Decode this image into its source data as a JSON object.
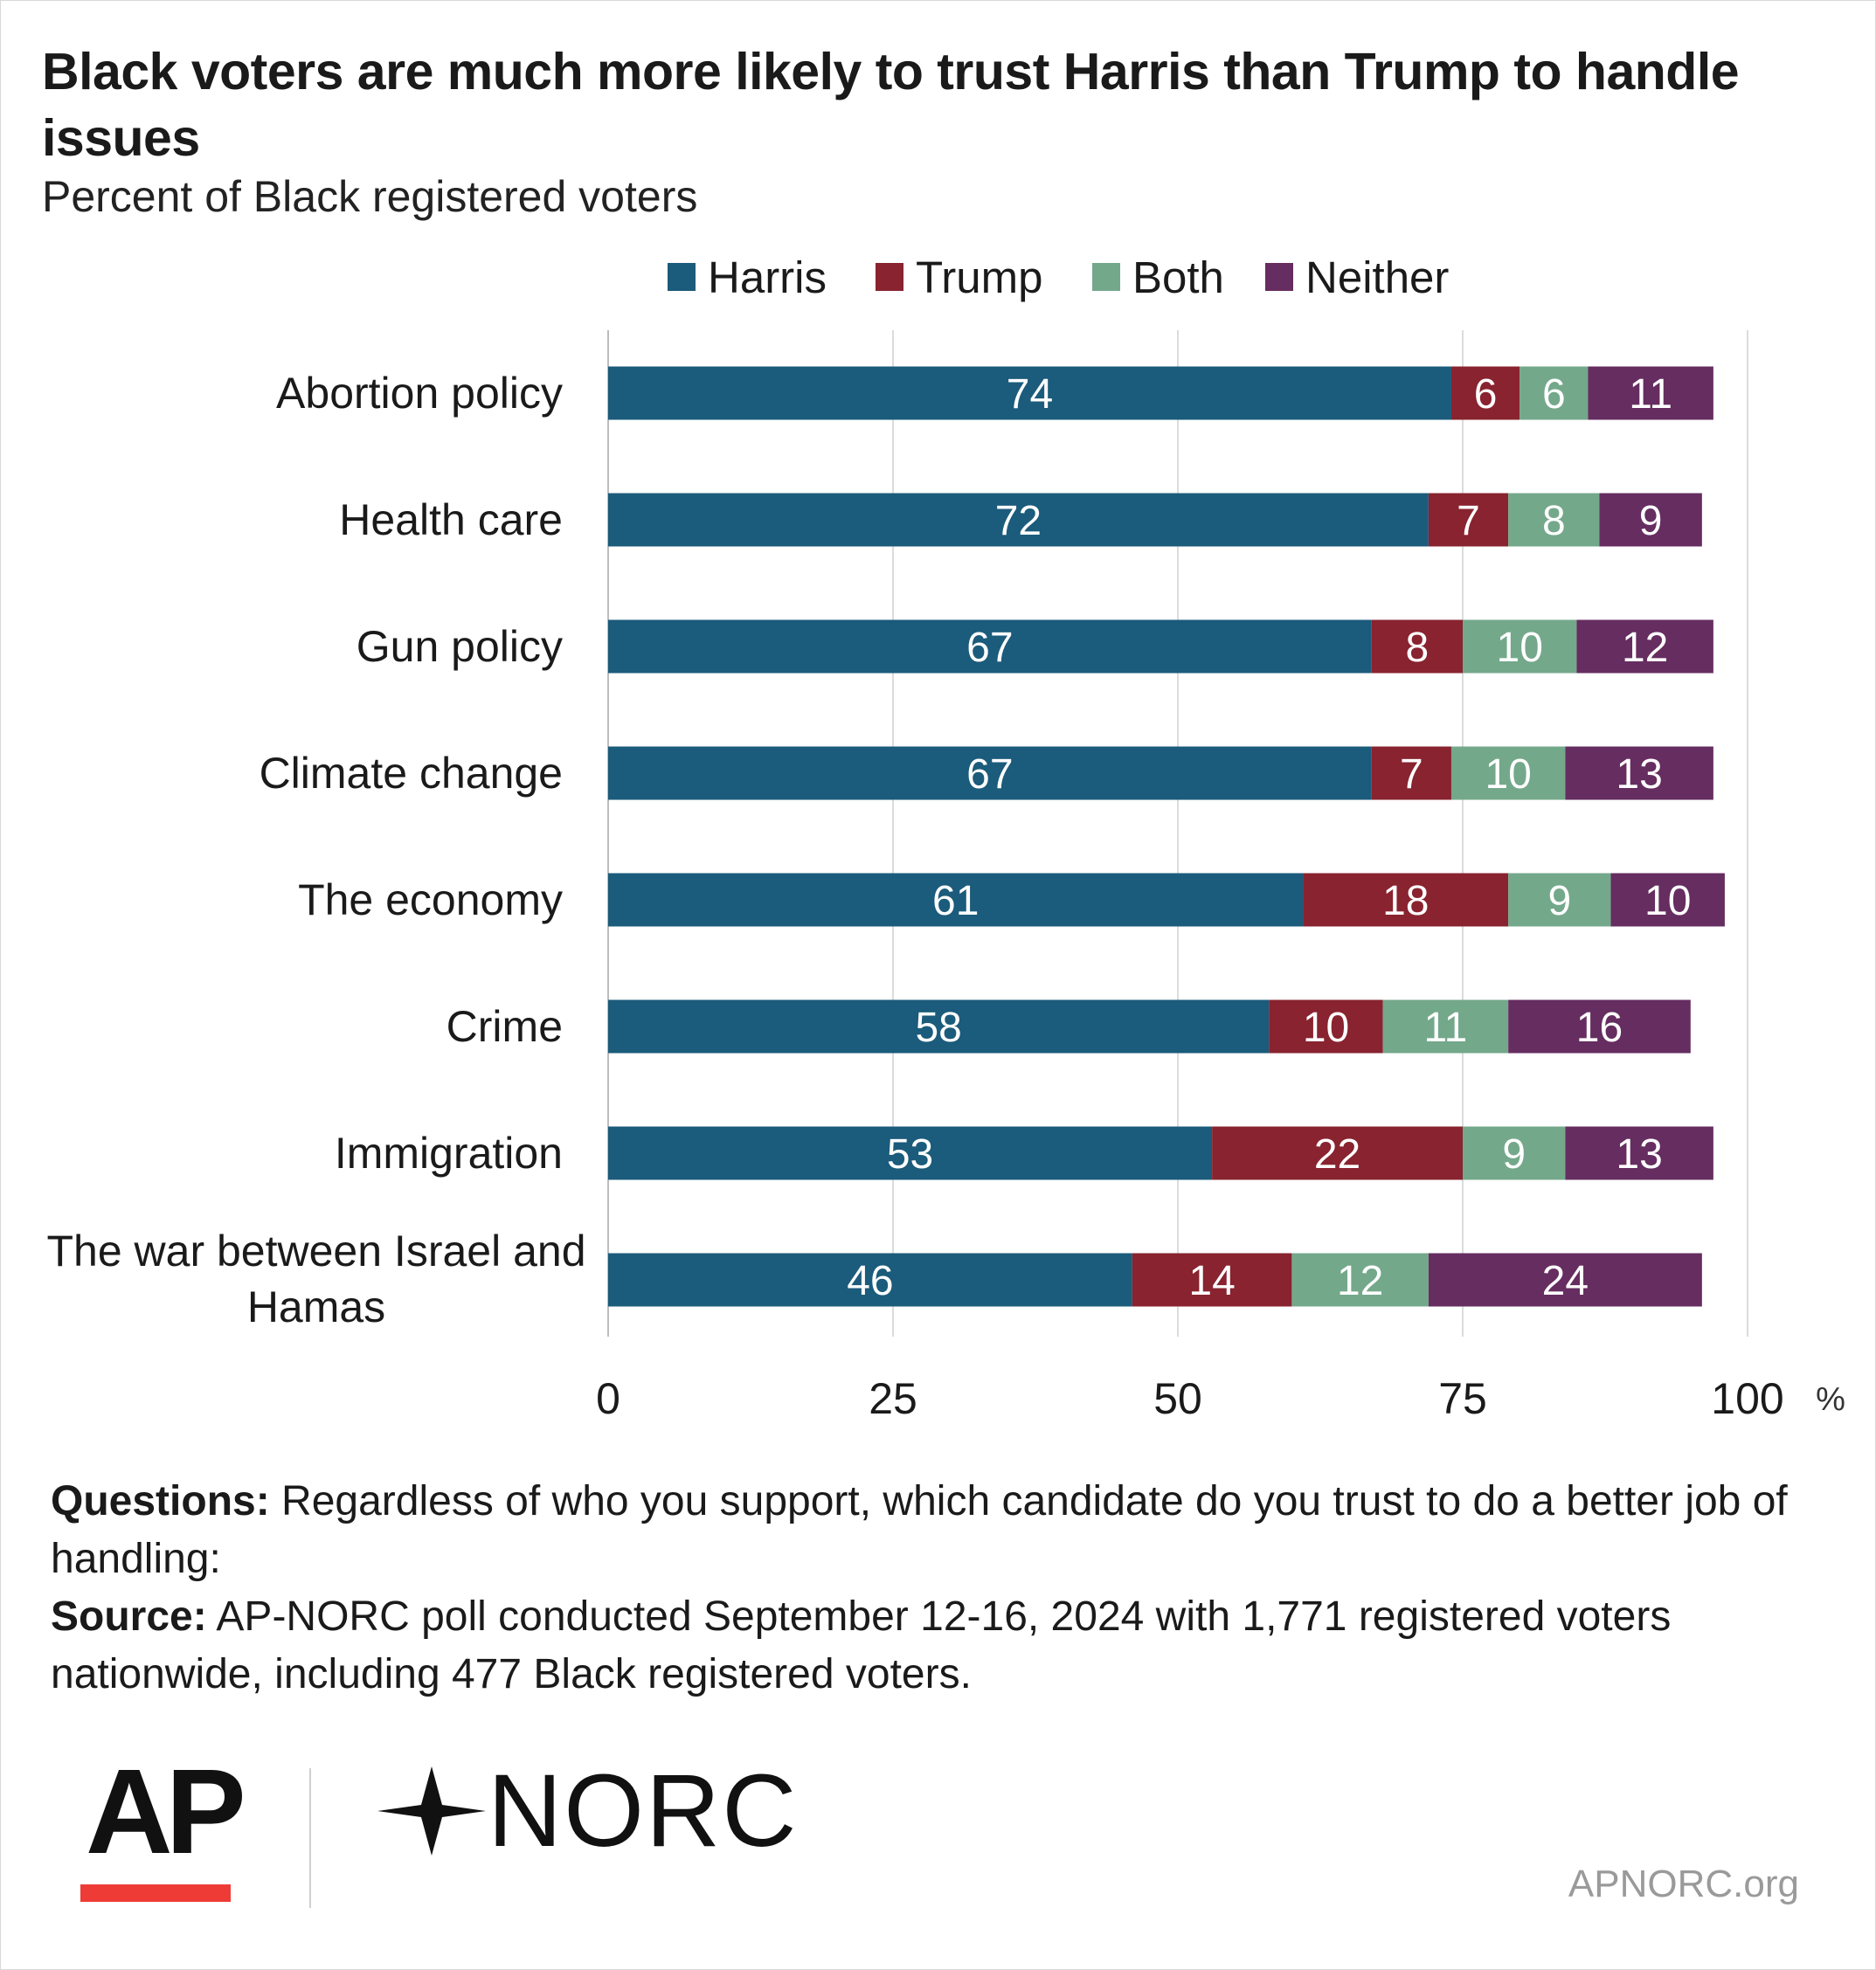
{
  "title": "Black voters are much more likely to trust Harris than Trump to handle issues",
  "subtitle": "Percent of Black registered voters",
  "notes": {
    "questions_label": "Questions:",
    "questions_text": "Regardless of who you support, which candidate do you trust to do a better job of handling:",
    "source_label": "Source:",
    "source_text": "AP-NORC poll conducted September 12-16, 2024 with 1,771 registered voters nationwide, including 477 Black registered voters."
  },
  "logos": {
    "ap": "AP",
    "norc": "NORC",
    "website": "APNORC.org"
  },
  "colors": {
    "Harris": "#1b5b7b",
    "Trump": "#88232f",
    "Both": "#74a88b",
    "Neither": "#652d60"
  },
  "chart_data": {
    "type": "bar",
    "orientation": "horizontal",
    "stacked": true,
    "title": "Black voters are much more likely to trust Harris than Trump to handle issues",
    "subtitle": "Percent of Black registered voters",
    "categories": [
      "Abortion policy",
      "Health care",
      "Gun policy",
      "Climate change",
      "The economy",
      "Crime",
      "Immigration",
      "The war between Israel and Hamas"
    ],
    "series": [
      {
        "name": "Harris",
        "values": [
          74,
          72,
          67,
          67,
          61,
          58,
          53,
          46
        ]
      },
      {
        "name": "Trump",
        "values": [
          6,
          7,
          8,
          7,
          18,
          10,
          22,
          14
        ]
      },
      {
        "name": "Both",
        "values": [
          6,
          8,
          10,
          10,
          9,
          11,
          9,
          12
        ]
      },
      {
        "name": "Neither",
        "values": [
          11,
          9,
          12,
          13,
          10,
          16,
          13,
          24
        ]
      }
    ],
    "xlim": [
      0,
      100
    ],
    "xticks": [
      0,
      25,
      50,
      75,
      100
    ],
    "xunit": "%",
    "grid": true,
    "legend": "top",
    "data_labels": true
  }
}
